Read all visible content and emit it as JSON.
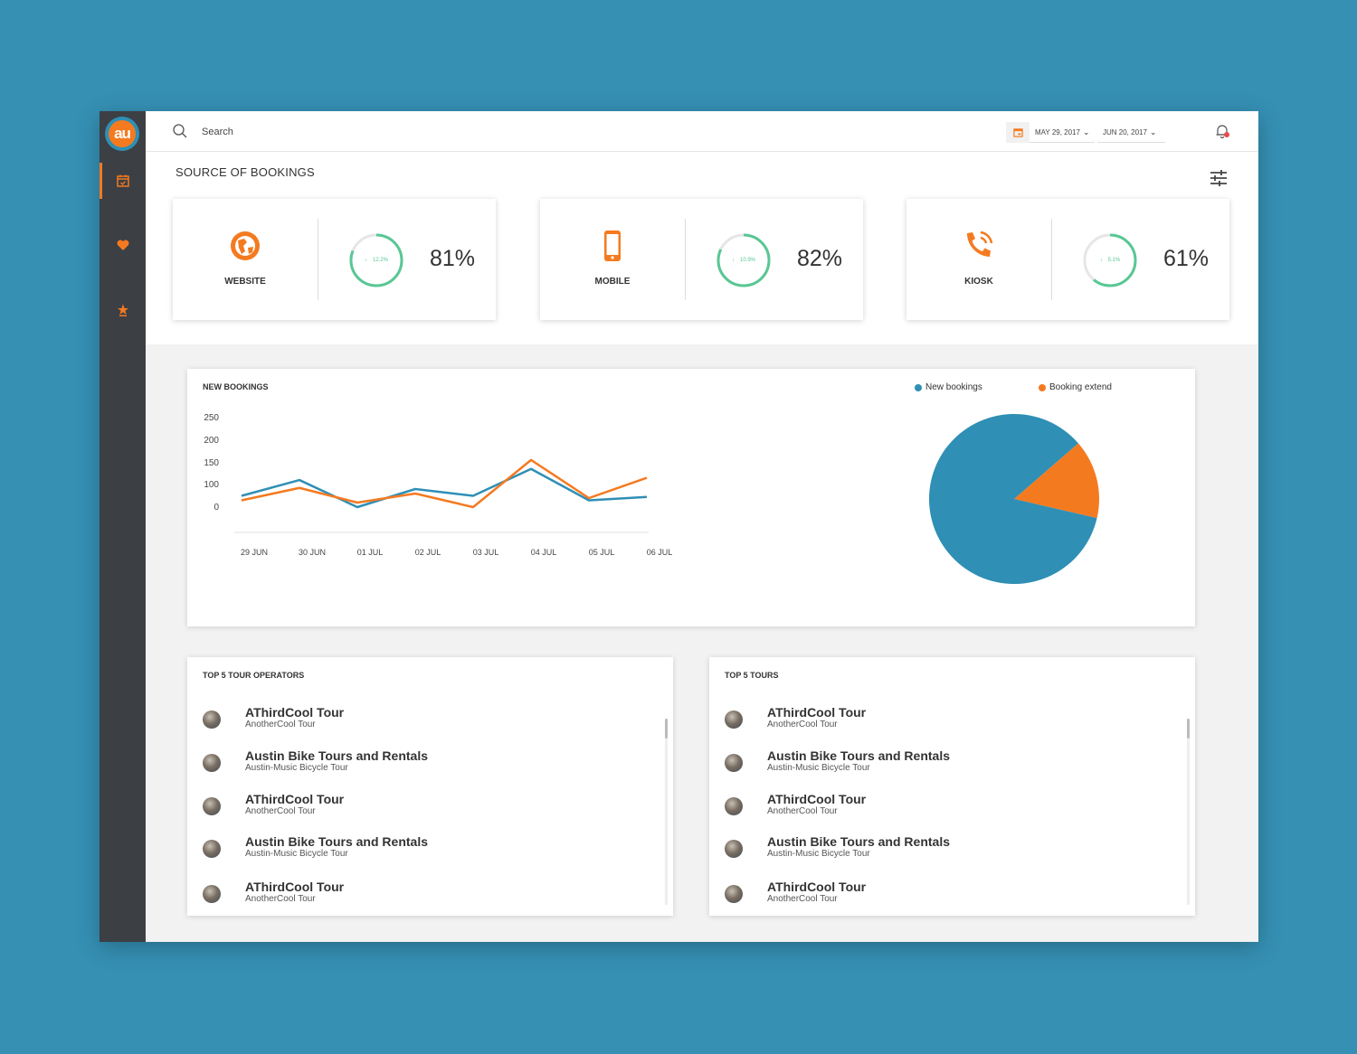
{
  "logo_text": "au",
  "sidebar": {
    "items": [
      {
        "name": "calendar-icon",
        "active": true
      },
      {
        "name": "heart-icon",
        "active": false
      },
      {
        "name": "star-icon",
        "active": false
      }
    ]
  },
  "topbar": {
    "search_placeholder": "Search",
    "date_from": "MAY 29, 2017",
    "date_to": "JUN 20, 2017"
  },
  "source": {
    "title": "SOURCE OF BOOKINGS",
    "cards": [
      {
        "label": "WEBSITE",
        "change": "12.2%",
        "percent": "81%",
        "ring_fraction": 0.81
      },
      {
        "label": "MOBILE",
        "change": "10.9%",
        "percent": "82%",
        "ring_fraction": 0.82
      },
      {
        "label": "KIOSK",
        "change": "5.1%",
        "percent": "61%",
        "ring_fraction": 0.61
      }
    ]
  },
  "bookings": {
    "title": "NEW BOOKINGS",
    "legend": [
      "New bookings",
      "Booking extend"
    ]
  },
  "top_operators": {
    "title": "TOP 5 TOUR OPERATORS",
    "items": [
      {
        "name": "AThirdCool Tour",
        "sub": "AnotherCool Tour"
      },
      {
        "name": "Austin Bike Tours and Rentals",
        "sub": "Austin-Music Bicycle Tour"
      },
      {
        "name": "AThirdCool Tour",
        "sub": "AnotherCool Tour"
      },
      {
        "name": "Austin Bike Tours and Rentals",
        "sub": "Austin-Music Bicycle Tour"
      },
      {
        "name": "AThirdCool Tour",
        "sub": "AnotherCool Tour"
      }
    ]
  },
  "top_tours": {
    "title": "TOP 5 TOURS",
    "items": [
      {
        "name": "AThirdCool Tour",
        "sub": "AnotherCool Tour"
      },
      {
        "name": "Austin Bike Tours and Rentals",
        "sub": "Austin-Music Bicycle Tour"
      },
      {
        "name": "AThirdCool Tour",
        "sub": "AnotherCool Tour"
      },
      {
        "name": "Austin Bike Tours and Rentals",
        "sub": "Austin-Music Bicycle Tour"
      },
      {
        "name": "AThirdCool Tour",
        "sub": "AnotherCool Tour"
      }
    ]
  },
  "colors": {
    "accent": "#f47a20",
    "blue": "#2f8fb5",
    "green": "#58c794",
    "sidebar": "#3c3f44",
    "background": "#3590b4"
  },
  "chart_data": [
    {
      "type": "line",
      "title": "NEW BOOKINGS",
      "categories": [
        "29 JUN",
        "30 JUN",
        "01 JUL",
        "02 JUL",
        "03 JUL",
        "04 JUL",
        "05 JUL",
        "06 JUL"
      ],
      "yticks": [
        0,
        100,
        150,
        200,
        250
      ],
      "series": [
        {
          "name": "New bookings",
          "color": "#2f8fb5",
          "values": [
            50,
            110,
            0,
            80,
            50,
            135,
            30,
            45
          ]
        },
        {
          "name": "Booking extend",
          "color": "#f47a20",
          "values": [
            30,
            85,
            20,
            60,
            0,
            155,
            40,
            115
          ]
        }
      ],
      "grid": false
    },
    {
      "type": "pie",
      "series": [
        {
          "name": "New bookings",
          "color": "#2f8fb5",
          "value": 85
        },
        {
          "name": "Booking extend",
          "color": "#f47a20",
          "value": 15
        }
      ]
    }
  ]
}
